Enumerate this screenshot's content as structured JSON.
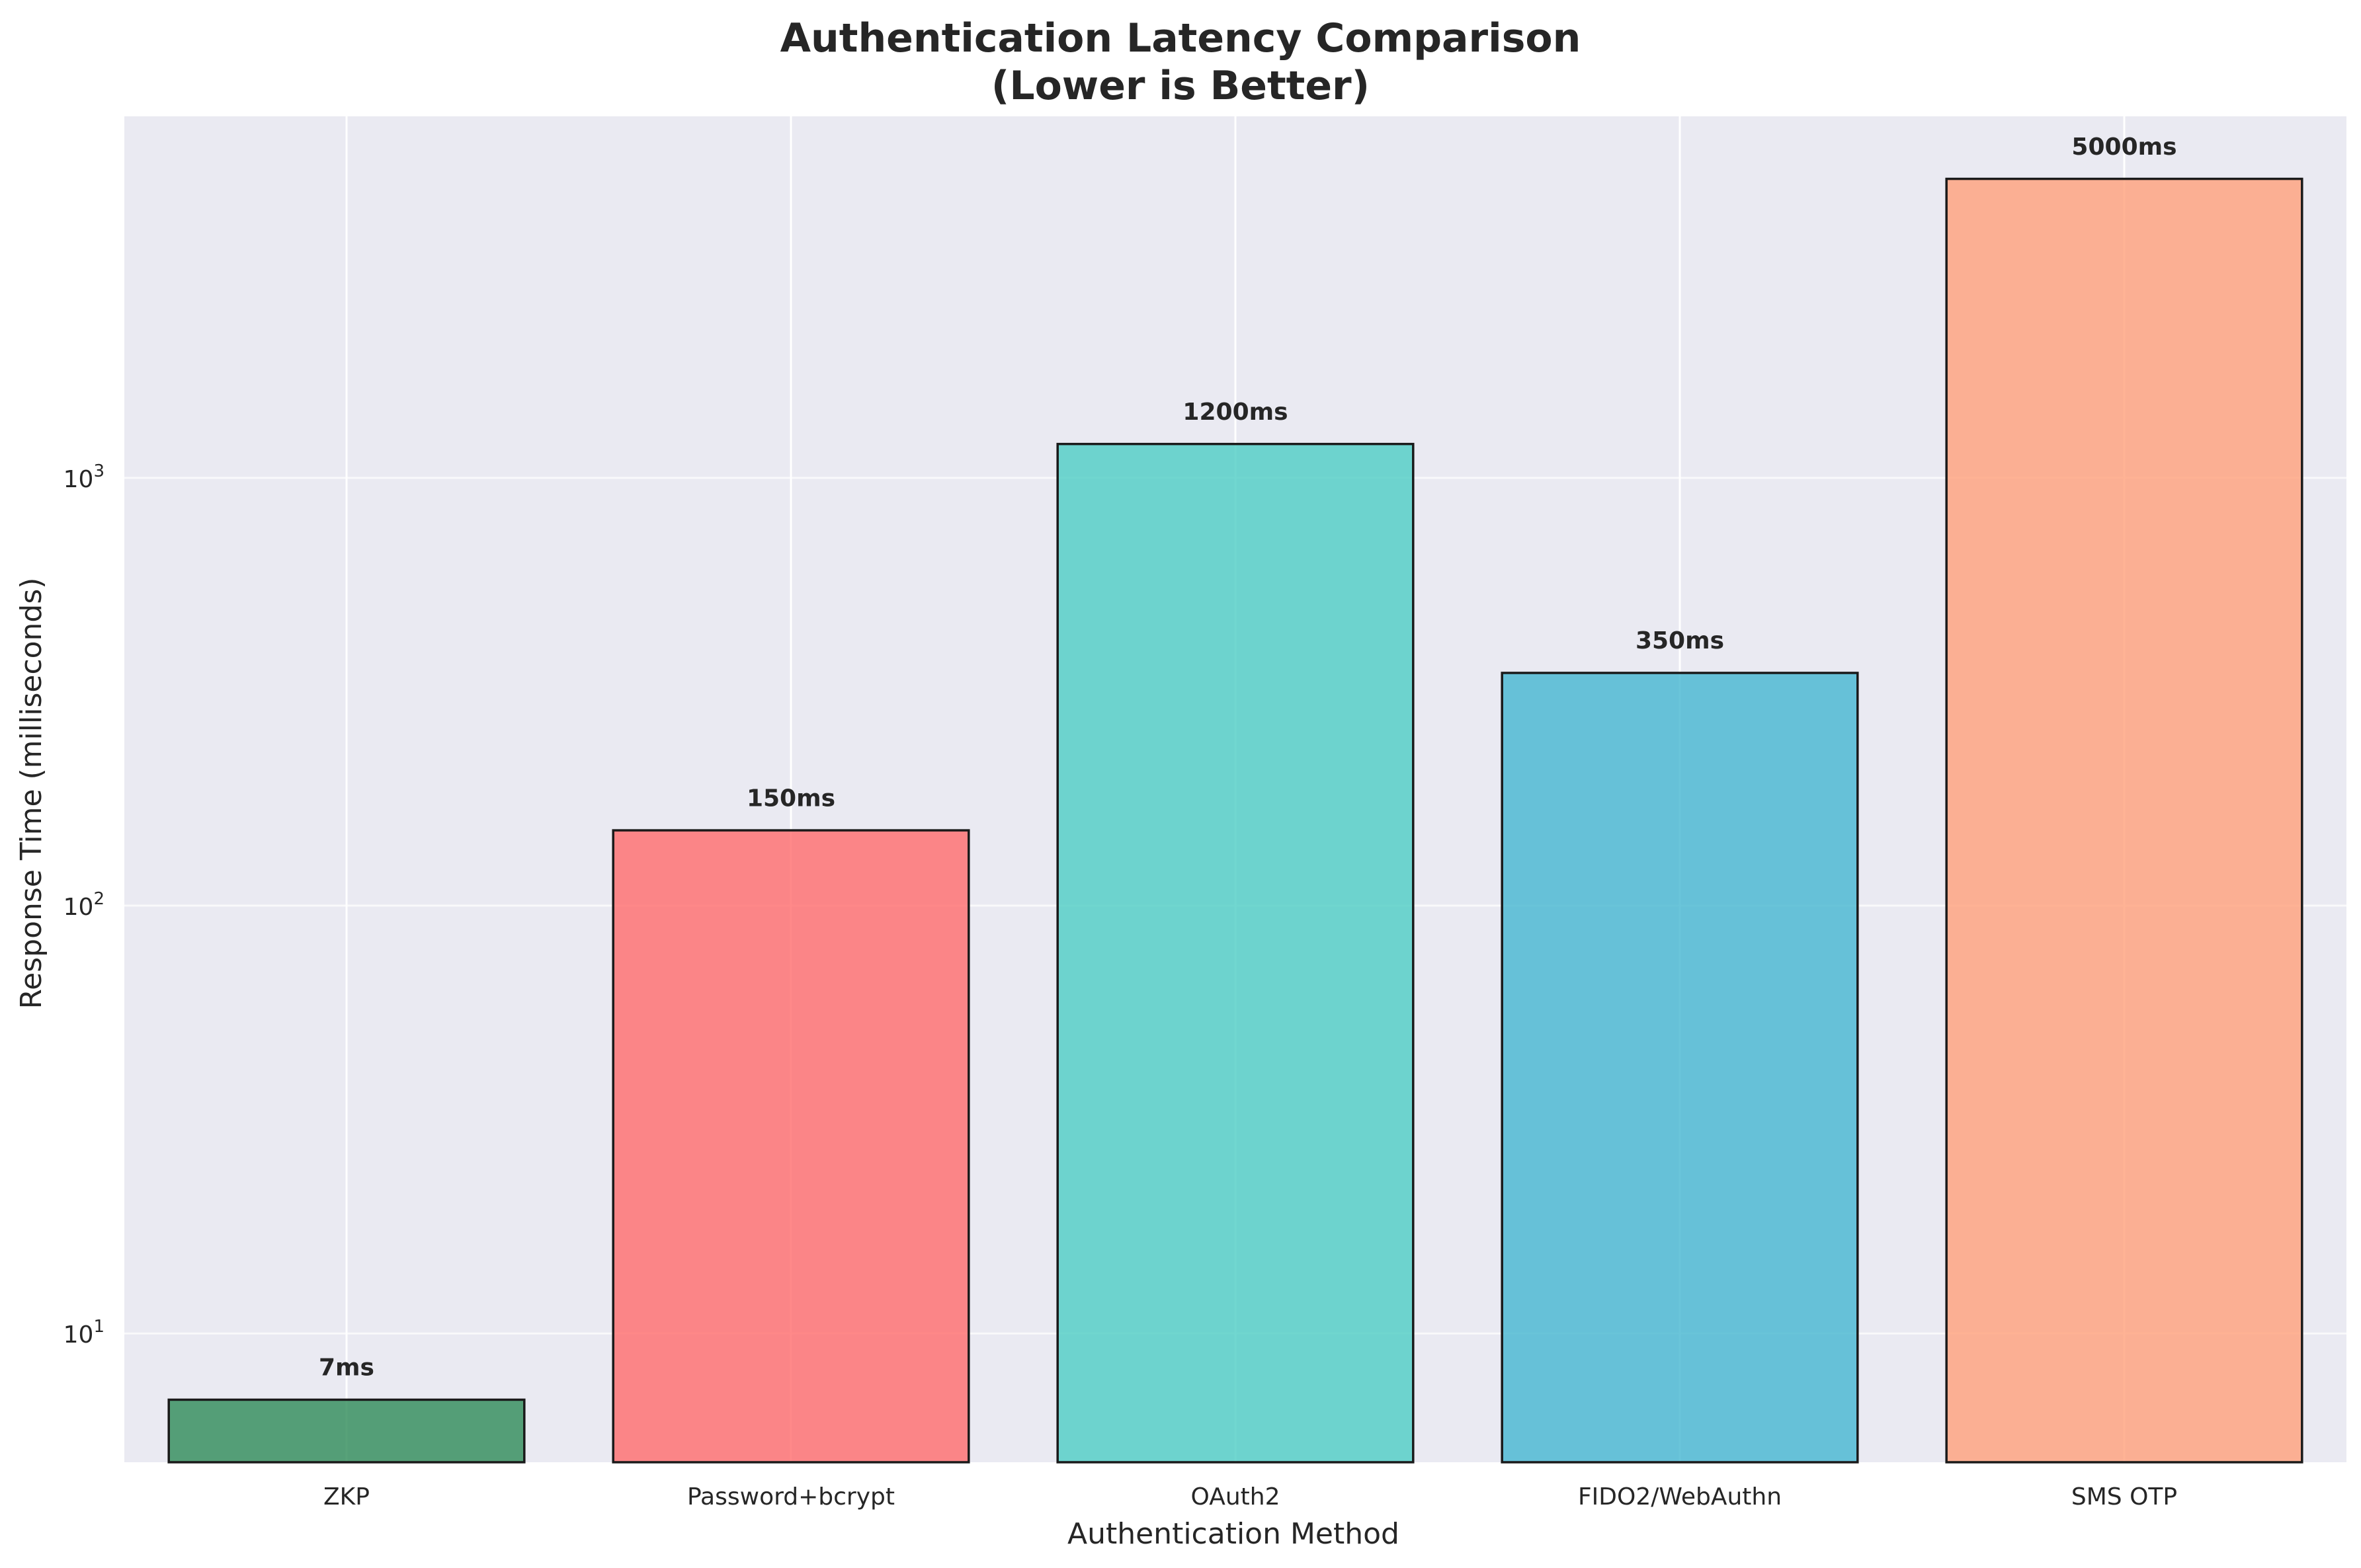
{
  "chart_data": {
    "type": "bar",
    "title": "Authentication Latency Comparison",
    "subtitle": "(Lower is Better)",
    "xlabel": "Authentication Method",
    "ylabel": "Response Time (milliseconds)",
    "categories": [
      "ZKP",
      "Password+bcrypt",
      "OAuth2",
      "FIDO2/WebAuthn",
      "SMS OTP"
    ],
    "values": [
      7,
      150,
      1200,
      350,
      5000
    ],
    "data_labels": [
      "7ms",
      "150ms",
      "1200ms",
      "350ms",
      "5000ms"
    ],
    "colors": [
      "#2e8b57",
      "#ff6b6b",
      "#4ecdc4",
      "#45b7d1",
      "#ffa07a"
    ],
    "yscale": "log",
    "ylim": [
      5,
      7000
    ],
    "yticks": [
      {
        "value": 10,
        "base": "10",
        "exp": "1"
      },
      {
        "value": 100,
        "base": "10",
        "exp": "2"
      },
      {
        "value": 1000,
        "base": "10",
        "exp": "3"
      }
    ],
    "grid": true,
    "background_color": "#eaeaf2",
    "grid_color": "#ffffff"
  }
}
